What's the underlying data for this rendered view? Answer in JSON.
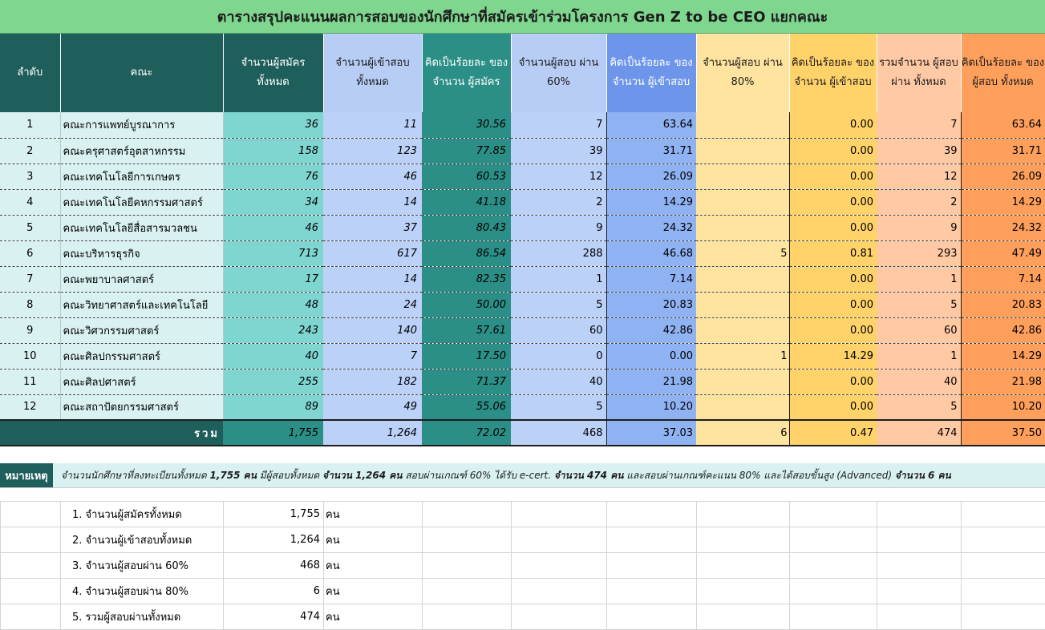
{
  "title": "ตารางสรุปคะแนนผลการสอบของนักศึกษาที่สมัครเข้าร่วมโครงการ Gen Z to be CEO  แยกคณะ",
  "headers": {
    "idx": "ลำดับ",
    "faculty": "คณะ",
    "applicants": "จำนวนผู้สมัคร ทั้งหมด",
    "takers": "จำนวนผู้เข้าสอบ ทั้งหมด",
    "pct_applicants": "คิดเป็นร้อยละ ของจำนวน ผู้สมัคร",
    "pass60": "จำนวนผู้สอบ ผ่าน 60%",
    "pct_takers60": "คิดเป็นร้อยละ ของจำนวน ผู้เข้าสอบ",
    "pass80": "จำนวนผู้สอบ ผ่าน 80%",
    "pct_takers80": "คิดเป็นร้อยละ ของจำนวน ผู้เข้าสอบ",
    "total_pass": "รวมจำนวน ผู้สอบผ่าน ทั้งหมด",
    "pct_total": "คิดเป็นร้อยละ ของผู้สอบ ทั้งหมด"
  },
  "rows": [
    {
      "idx": "1",
      "faculty": "คณะการแพทย์บูรณาการ",
      "applicants": "36",
      "takers": "11",
      "pct_applicants": "30.56",
      "pass60": "7",
      "pct_takers60": "63.64",
      "pass80": "",
      "pct_takers80": "0.00",
      "total_pass": "7",
      "pct_total": "63.64"
    },
    {
      "idx": "2",
      "faculty": "คณะครุศาสตร์อุตสาหกรรม",
      "applicants": "158",
      "takers": "123",
      "pct_applicants": "77.85",
      "pass60": "39",
      "pct_takers60": "31.71",
      "pass80": "",
      "pct_takers80": "0.00",
      "total_pass": "39",
      "pct_total": "31.71"
    },
    {
      "idx": "3",
      "faculty": "คณะเทคโนโลยีการเกษตร",
      "applicants": "76",
      "takers": "46",
      "pct_applicants": "60.53",
      "pass60": "12",
      "pct_takers60": "26.09",
      "pass80": "",
      "pct_takers80": "0.00",
      "total_pass": "12",
      "pct_total": "26.09"
    },
    {
      "idx": "4",
      "faculty": "คณะเทคโนโลยีคหกรรมศาสตร์",
      "applicants": "34",
      "takers": "14",
      "pct_applicants": "41.18",
      "pass60": "2",
      "pct_takers60": "14.29",
      "pass80": "",
      "pct_takers80": "0.00",
      "total_pass": "2",
      "pct_total": "14.29"
    },
    {
      "idx": "5",
      "faculty": "คณะเทคโนโลยีสื่อสารมวลชน",
      "applicants": "46",
      "takers": "37",
      "pct_applicants": "80.43",
      "pass60": "9",
      "pct_takers60": "24.32",
      "pass80": "",
      "pct_takers80": "0.00",
      "total_pass": "9",
      "pct_total": "24.32"
    },
    {
      "idx": "6",
      "faculty": "คณะบริหารธุรกิจ",
      "applicants": "713",
      "takers": "617",
      "pct_applicants": "86.54",
      "pass60": "288",
      "pct_takers60": "46.68",
      "pass80": "5",
      "pct_takers80": "0.81",
      "total_pass": "293",
      "pct_total": "47.49"
    },
    {
      "idx": "7",
      "faculty": "คณะพยาบาลศาสตร์",
      "applicants": "17",
      "takers": "14",
      "pct_applicants": "82.35",
      "pass60": "1",
      "pct_takers60": "7.14",
      "pass80": "",
      "pct_takers80": "0.00",
      "total_pass": "1",
      "pct_total": "7.14"
    },
    {
      "idx": "8",
      "faculty": "คณะวิทยาศาสตร์และเทคโนโลยี",
      "applicants": "48",
      "takers": "24",
      "pct_applicants": "50.00",
      "pass60": "5",
      "pct_takers60": "20.83",
      "pass80": "",
      "pct_takers80": "0.00",
      "total_pass": "5",
      "pct_total": "20.83"
    },
    {
      "idx": "9",
      "faculty": "คณะวิศวกรรมศาสตร์",
      "applicants": "243",
      "takers": "140",
      "pct_applicants": "57.61",
      "pass60": "60",
      "pct_takers60": "42.86",
      "pass80": "",
      "pct_takers80": "0.00",
      "total_pass": "60",
      "pct_total": "42.86"
    },
    {
      "idx": "10",
      "faculty": "คณะศิลปกรรมศาสตร์",
      "applicants": "40",
      "takers": "7",
      "pct_applicants": "17.50",
      "pass60": "0",
      "pct_takers60": "0.00",
      "pass80": "1",
      "pct_takers80": "14.29",
      "total_pass": "1",
      "pct_total": "14.29"
    },
    {
      "idx": "11",
      "faculty": "คณะศิลปศาสตร์",
      "applicants": "255",
      "takers": "182",
      "pct_applicants": "71.37",
      "pass60": "40",
      "pct_takers60": "21.98",
      "pass80": "",
      "pct_takers80": "0.00",
      "total_pass": "40",
      "pct_total": "21.98"
    },
    {
      "idx": "12",
      "faculty": "คณะสถาปัตยกรรมศาสตร์",
      "applicants": "89",
      "takers": "49",
      "pct_applicants": "55.06",
      "pass60": "5",
      "pct_takers60": "10.20",
      "pass80": "",
      "pct_takers80": "0.00",
      "total_pass": "5",
      "pct_total": "10.20"
    }
  ],
  "totals": {
    "label": "รวม",
    "applicants": "1,755",
    "takers": "1,264",
    "pct_applicants": "72.02",
    "pass60": "468",
    "pct_takers60": "37.03",
    "pass80": "6",
    "pct_takers80": "0.47",
    "total_pass": "474",
    "pct_total": "37.50"
  },
  "note": {
    "label": "หมายเหตุ",
    "t1": "จำนวนนักศึกษาที่ลงทะเบียนทั้งหมด ",
    "b1": "1,755 คน",
    "t2": " มีผู้สอบทั้งหมด ",
    "b2": "จำนวน 1,264 คน",
    "t3": " สอบผ่านเกณฑ์ 60% ได้รับ e-cert. ",
    "b3": "จำนวน 474 คน",
    "t4": " และสอบผ่านเกณฑ์คะแนน 80% และได้สอบขั้นสูง (Advanced) ",
    "b4": "จำนวน 6 คน"
  },
  "summary": [
    {
      "label": "1. จำนวนผู้สมัครทั้งหมด",
      "value": "1,755",
      "unit": "คน"
    },
    {
      "label": "2. จำนวนผู้เข้าสอบทั้งหมด",
      "value": "1,264",
      "unit": "คน"
    },
    {
      "label": "3. จำนวนผู้สอบผ่าน 60%",
      "value": "468",
      "unit": "คน"
    },
    {
      "label": "4. จำนวนผู้สอบผ่าน 80%",
      "value": "6",
      "unit": "คน"
    },
    {
      "label": "5. รวมผู้สอบผ่านทั้งหมด",
      "value": "474",
      "unit": "คน"
    }
  ],
  "colors": {
    "title_bg": "#7fd68f",
    "header_dark": "#1f5f5b",
    "teal": "#2b8f87",
    "light_blue": "#bcd1f7",
    "yellow": "#ffe4a0",
    "orange": "#ff9f5c"
  }
}
